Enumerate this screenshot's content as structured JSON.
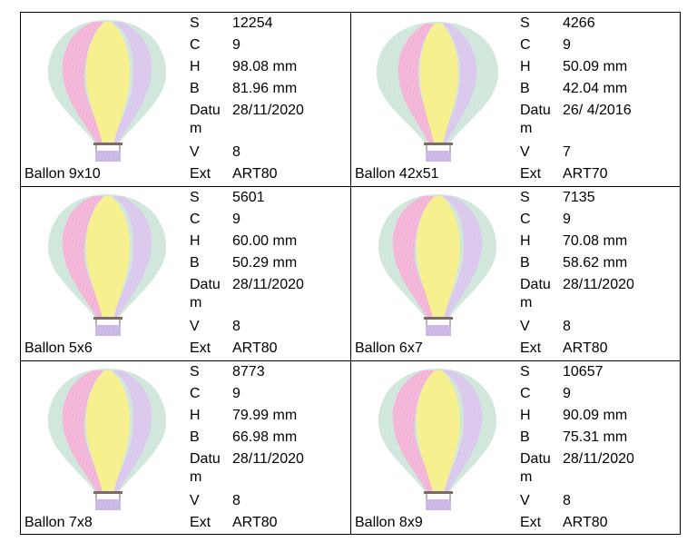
{
  "labels": {
    "s": "S",
    "c": "C",
    "h": "H",
    "b": "B",
    "datum": "Datu m",
    "v": "V",
    "ext": "Ext"
  },
  "designs": [
    {
      "name": "Ballon 9x10",
      "s": "12254",
      "c": "9",
      "h": "98.08 mm",
      "b": "81.96 mm",
      "datum": "28/11/2020",
      "v": "8",
      "ext": "ART80"
    },
    {
      "name": "Ballon 42x51",
      "s": "4266",
      "c": "9",
      "h": "50.09 mm",
      "b": "42.04 mm",
      "datum": "26/ 4/2016",
      "v": "7",
      "ext": "ART70"
    },
    {
      "name": "Ballon 5x6",
      "s": "5601",
      "c": "9",
      "h": "60.00 mm",
      "b": "50.29 mm",
      "datum": "28/11/2020",
      "v": "8",
      "ext": "ART80"
    },
    {
      "name": "Ballon 6x7",
      "s": "7135",
      "c": "9",
      "h": "70.08 mm",
      "b": "58.62 mm",
      "datum": "28/11/2020",
      "v": "8",
      "ext": "ART80"
    },
    {
      "name": "Ballon 7x8",
      "s": "8773",
      "c": "9",
      "h": "79.99 mm",
      "b": "66.98 mm",
      "datum": "28/11/2020",
      "v": "8",
      "ext": "ART80"
    },
    {
      "name": "Ballon 8x9",
      "s": "10657",
      "c": "9",
      "h": "90.09 mm",
      "b": "75.31 mm",
      "datum": "28/11/2020",
      "v": "8",
      "ext": "ART80"
    }
  ],
  "colors": {
    "pink": "#f2b3d6",
    "yellow": "#f7f08a",
    "lilac": "#d9c7ec",
    "mint": "#cfe6da",
    "basket": "#c9b6e6",
    "rope": "#7a6a6a"
  }
}
